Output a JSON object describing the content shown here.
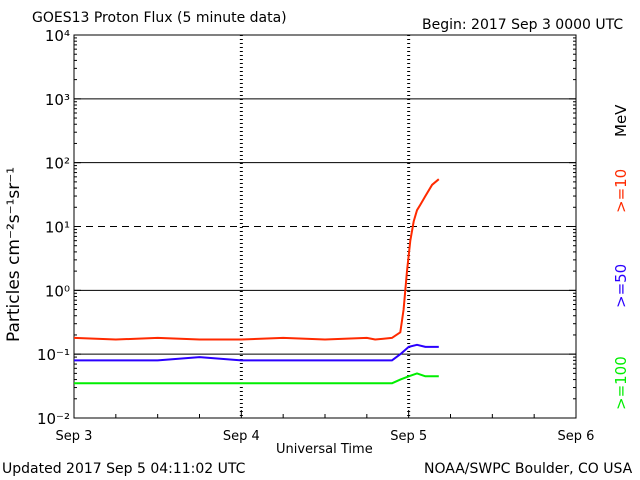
{
  "header": {
    "title": "GOES13 Proton Flux (5 minute data)",
    "begin": "Begin: 2017 Sep 3 0000 UTC"
  },
  "footer": {
    "updated": "Updated 2017 Sep  5 04:11:02 UTC",
    "credit": "NOAA/SWPC Boulder, CO USA"
  },
  "legend": {
    "unit": "MeV",
    "items": [
      {
        "label": ">=10",
        "color": "#ff2a00"
      },
      {
        "label": ">=50",
        "color": "#2a00ff"
      },
      {
        "label": ">=100",
        "color": "#00ee00"
      }
    ]
  },
  "chart_data": {
    "type": "line",
    "title": "GOES13 Proton Flux (5 minute data)",
    "xlabel": "Universal Time",
    "ylabel": "Particles cm⁻²s⁻¹sr⁻¹",
    "xlim": [
      0,
      3
    ],
    "x_ticks": [
      "Sep 3",
      "Sep 4",
      "Sep 5",
      "Sep 6"
    ],
    "y_scale": "log",
    "ylim_exponents": [
      -2,
      4
    ],
    "y_ticks": [
      "10⁻²",
      "10⁻¹",
      "10⁰",
      "10¹",
      "10²",
      "10³",
      "10⁴"
    ],
    "thresholds": [
      {
        "value": 10,
        "style": "dashed"
      }
    ],
    "series": [
      {
        "name": ">=10 MeV",
        "color": "#ff2a00",
        "x": [
          0,
          0.25,
          0.5,
          0.75,
          1.0,
          1.25,
          1.5,
          1.75,
          1.8,
          1.9,
          1.95,
          1.97,
          1.99,
          2.01,
          2.03,
          2.05,
          2.07,
          2.1,
          2.14,
          2.18
        ],
        "y": [
          0.18,
          0.17,
          0.18,
          0.17,
          0.17,
          0.18,
          0.17,
          0.18,
          0.17,
          0.18,
          0.22,
          0.5,
          2.0,
          6.0,
          12,
          18,
          22,
          30,
          45,
          55
        ]
      },
      {
        "name": ">=50 MeV",
        "color": "#2a00ff",
        "x": [
          0,
          0.25,
          0.5,
          0.75,
          1.0,
          1.25,
          1.5,
          1.75,
          1.9,
          1.95,
          2.0,
          2.05,
          2.1,
          2.18
        ],
        "y": [
          0.08,
          0.08,
          0.08,
          0.09,
          0.08,
          0.08,
          0.08,
          0.08,
          0.08,
          0.1,
          0.13,
          0.14,
          0.13,
          0.13
        ]
      },
      {
        "name": ">=100 MeV",
        "color": "#00ee00",
        "x": [
          0,
          0.25,
          0.5,
          0.75,
          1.0,
          1.25,
          1.5,
          1.75,
          1.9,
          1.95,
          2.0,
          2.05,
          2.1,
          2.18
        ],
        "y": [
          0.035,
          0.035,
          0.035,
          0.035,
          0.035,
          0.035,
          0.035,
          0.035,
          0.035,
          0.04,
          0.045,
          0.05,
          0.045,
          0.045
        ]
      }
    ]
  }
}
